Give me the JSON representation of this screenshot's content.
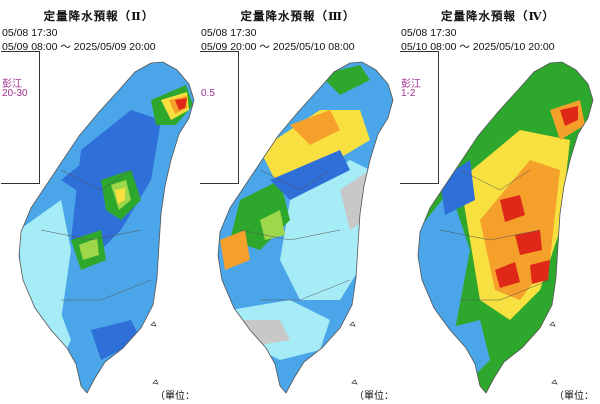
{
  "panels": [
    {
      "title": "定量降水預報（Ⅱ）",
      "issued": "05/08 17:30",
      "valid": "05/09 08:00 ～ 2025/05/09 20:00",
      "inset_label": "彭江",
      "inset_value": "20-30",
      "unit": "（單位：",
      "side_mark": "㎜"
    },
    {
      "title": "定量降水預報（Ⅲ）",
      "issued": "05/08 17:30",
      "valid": "05/09 20:00 ～ 2025/05/10 08:00",
      "inset_label": "",
      "inset_value": "0.5",
      "unit": "（單位：",
      "side_mark": "㎜"
    },
    {
      "title": "定量降水預報（Ⅳ）",
      "issued": "05/08 17:30",
      "valid": "05/10 08:00 ～ 2025/05/10 20:00",
      "inset_label": "彭江",
      "inset_value": "1-2",
      "unit": "（單位：",
      "side_mark": "㎜"
    }
  ],
  "colors": {
    "none": "#ffffff",
    "light_gray": "#c8c8c8",
    "cyan": "#a6ecf6",
    "light_blue": "#4aa6e8",
    "blue": "#2e6fd8",
    "green": "#2da82d",
    "light_green": "#9ed84a",
    "yellow": "#f8e040",
    "orange": "#f5a02a",
    "red": "#e02818",
    "inset_text": "#a03090"
  }
}
